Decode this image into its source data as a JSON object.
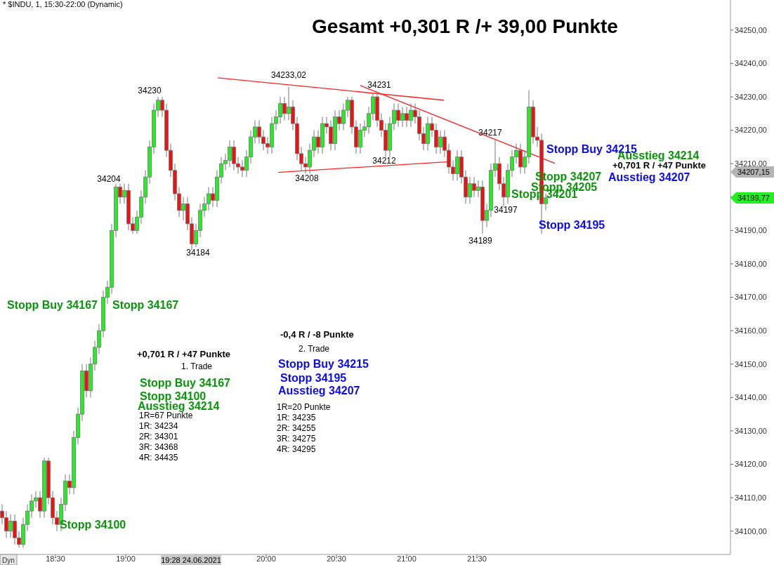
{
  "chart_data": {
    "type": "candlestick",
    "title": "Gesamt +0,301 R /+ 39,00 Punkte",
    "subtitle": "* $INDU, 1, 15:30-22:00 (Dynamic)",
    "xlim": [
      18.105,
      23.305
    ],
    "ylim": [
      34093,
      34259
    ],
    "xticks": [
      {
        "value": 18.5,
        "label": "18:30"
      },
      {
        "value": 19,
        "label": "19:00"
      },
      {
        "value": 19.5,
        "label": null
      },
      {
        "value": 20,
        "label": "20:00"
      },
      {
        "value": 20.5,
        "label": "20:30"
      },
      {
        "value": 21,
        "label": "21:00"
      },
      {
        "value": 21.5,
        "label": "21:30"
      }
    ],
    "yticks": [
      {
        "value": 34100,
        "label": "34100,00"
      },
      {
        "value": 34110,
        "label": "34110,00"
      },
      {
        "value": 34120,
        "label": "34120,00"
      },
      {
        "value": 34130,
        "label": "34130,00"
      },
      {
        "value": 34140,
        "label": "34140,00"
      },
      {
        "value": 34150,
        "label": "34150,00"
      },
      {
        "value": 34160,
        "label": "34160,00"
      },
      {
        "value": 34170,
        "label": "34170,00"
      },
      {
        "value": 34180,
        "label": "34180,00"
      },
      {
        "value": 34190,
        "label": "34190,00"
      },
      {
        "value": 34200,
        "label": null
      },
      {
        "value": 34210,
        "label": "34210,00"
      },
      {
        "value": 34220,
        "label": "34220,00"
      },
      {
        "value": 34230,
        "label": "34230,00"
      },
      {
        "value": 34240,
        "label": "34240,00"
      },
      {
        "value": 34250,
        "label": "34250,00"
      }
    ],
    "x": [
      18.12,
      18.15,
      18.18,
      18.21,
      18.24,
      18.27,
      18.3,
      18.33,
      18.36,
      18.39,
      18.42,
      18.45,
      18.48,
      18.51,
      18.54,
      18.57,
      18.6,
      18.63,
      18.66,
      18.69,
      18.72,
      18.75,
      18.78,
      18.81,
      18.84,
      18.87,
      18.9,
      18.93,
      18.96,
      18.99,
      19.02,
      19.05,
      19.08,
      19.11,
      19.14,
      19.17,
      19.2,
      19.23,
      19.26,
      19.29,
      19.32,
      19.35,
      19.38,
      19.41,
      19.44,
      19.47,
      19.5,
      19.53,
      19.56,
      19.59,
      19.62,
      19.65,
      19.68,
      19.71,
      19.74,
      19.77,
      19.8,
      19.83,
      19.86,
      19.89,
      19.92,
      19.95,
      19.98,
      20.01,
      20.04,
      20.07,
      20.1,
      20.13,
      20.16,
      20.19,
      20.22,
      20.25,
      20.28,
      20.31,
      20.34,
      20.37,
      20.4,
      20.43,
      20.46,
      20.49,
      20.52,
      20.55,
      20.58,
      20.61,
      20.64,
      20.67,
      20.7,
      20.73,
      20.76,
      20.79,
      20.82,
      20.85,
      20.88,
      20.91,
      20.94,
      20.97,
      21,
      21.03,
      21.06,
      21.09,
      21.12,
      21.15,
      21.18,
      21.21,
      21.24,
      21.27,
      21.3,
      21.33,
      21.36,
      21.39,
      21.42,
      21.45,
      21.48,
      21.51,
      21.54,
      21.57,
      21.6,
      21.63,
      21.66,
      21.69,
      21.72,
      21.75,
      21.78,
      21.81,
      21.84,
      21.87,
      21.9,
      21.93,
      21.96,
      21.99
    ],
    "ohlc": [
      [
        34106,
        34108,
        34102,
        34104
      ],
      [
        34104,
        34106,
        34098,
        34100
      ],
      [
        34100,
        34105,
        34098,
        34103
      ],
      [
        34103,
        34105,
        34096,
        34098
      ],
      [
        34098,
        34100,
        34095,
        34096
      ],
      [
        34096,
        34104,
        34095,
        34102
      ],
      [
        34102,
        34108,
        34100,
        34106
      ],
      [
        34106,
        34111,
        34104,
        34109
      ],
      [
        34109,
        34112,
        34107,
        34110
      ],
      [
        34110,
        34112,
        34104,
        34106
      ],
      [
        34106,
        34122,
        34104,
        34121
      ],
      [
        34121,
        34122,
        34108,
        34110
      ],
      [
        34110,
        34112,
        34102,
        34104
      ],
      [
        34104,
        34106,
        34100,
        34102
      ],
      [
        34102,
        34110,
        34100,
        34108
      ],
      [
        34108,
        34117,
        34106,
        34115
      ],
      [
        34115,
        34117,
        34111,
        34113
      ],
      [
        34113,
        34130,
        34111,
        34128
      ],
      [
        34128,
        34137,
        34126,
        34135
      ],
      [
        34135,
        34150,
        34133,
        34148
      ],
      [
        34148,
        34150,
        34140,
        34142
      ],
      [
        34142,
        34152,
        34140,
        34150
      ],
      [
        34150,
        34157,
        34148,
        34155
      ],
      [
        34155,
        34162,
        34153,
        34160
      ],
      [
        34160,
        34172,
        34158,
        34170
      ],
      [
        34170,
        34175,
        34168,
        34173
      ],
      [
        34173,
        34192,
        34171,
        34190
      ],
      [
        34190,
        34204,
        34188,
        34203
      ],
      [
        34203,
        34204,
        34198,
        34200
      ],
      [
        34200,
        34204,
        34198,
        34202
      ],
      [
        34202,
        34204,
        34190,
        34192
      ],
      [
        34192,
        34194,
        34189,
        34190
      ],
      [
        34190,
        34196,
        34189,
        34194
      ],
      [
        34194,
        34202,
        34192,
        34200
      ],
      [
        34200,
        34208,
        34198,
        34206
      ],
      [
        34206,
        34217,
        34204,
        34215
      ],
      [
        34215,
        34228,
        34213,
        34226
      ],
      [
        34226,
        34230,
        34224,
        34229
      ],
      [
        34229,
        34230,
        34224,
        34226
      ],
      [
        34226,
        34228,
        34212,
        34214
      ],
      [
        34214,
        34216,
        34206,
        34208
      ],
      [
        34208,
        34210,
        34199,
        34201
      ],
      [
        34201,
        34203,
        34194,
        34196
      ],
      [
        34196,
        34200,
        34193,
        34198
      ],
      [
        34198,
        34200,
        34190,
        34192
      ],
      [
        34192,
        34194,
        34184,
        34186
      ],
      [
        34186,
        34192,
        34185,
        34190
      ],
      [
        34190,
        34198,
        34188,
        34196
      ],
      [
        34196,
        34200,
        34194,
        34198
      ],
      [
        34198,
        34203,
        34196,
        34201
      ],
      [
        34201,
        34203,
        34197,
        34199
      ],
      [
        34199,
        34208,
        34197,
        34206
      ],
      [
        34206,
        34212,
        34204,
        34210
      ],
      [
        34210,
        34213,
        34208,
        34211
      ],
      [
        34211,
        34217,
        34209,
        34215
      ],
      [
        34215,
        34217,
        34208,
        34210
      ],
      [
        34210,
        34212,
        34207,
        34209
      ],
      [
        34209,
        34211,
        34206,
        34208
      ],
      [
        34208,
        34214,
        34206,
        34212
      ],
      [
        34212,
        34220,
        34210,
        34218
      ],
      [
        34218,
        34223,
        34216,
        34221
      ],
      [
        34221,
        34223,
        34216,
        34218
      ],
      [
        34218,
        34220,
        34214,
        34216
      ],
      [
        34216,
        34218,
        34213,
        34215
      ],
      [
        34215,
        34224,
        34213,
        34222
      ],
      [
        34222,
        34226,
        34220,
        34224
      ],
      [
        34224,
        34230,
        34222,
        34228
      ],
      [
        34228,
        34230,
        34223,
        34225
      ],
      [
        34225,
        34233.02,
        34223,
        34227
      ],
      [
        34227,
        34229,
        34220,
        34222
      ],
      [
        34222,
        34224,
        34211,
        34213
      ],
      [
        34213,
        34215,
        34208,
        34210
      ],
      [
        34210,
        34212,
        34207,
        34209
      ],
      [
        34209,
        34216,
        34207,
        34214
      ],
      [
        34214,
        34220,
        34212,
        34218
      ],
      [
        34218,
        34220,
        34213,
        34215
      ],
      [
        34215,
        34224,
        34213,
        34222
      ],
      [
        34222,
        34224,
        34219,
        34221
      ],
      [
        34221,
        34223,
        34214,
        34216
      ],
      [
        34216,
        34226,
        34214,
        34224
      ],
      [
        34224,
        34226,
        34220,
        34222
      ],
      [
        34222,
        34228,
        34220,
        34226
      ],
      [
        34226,
        34230,
        34224,
        34229
      ],
      [
        34229,
        34230,
        34219,
        34221
      ],
      [
        34221,
        34223,
        34213,
        34215
      ],
      [
        34215,
        34222,
        34213,
        34220
      ],
      [
        34220,
        34223,
        34218,
        34221
      ],
      [
        34221,
        34227,
        34219,
        34225
      ],
      [
        34225,
        34231,
        34223,
        34230
      ],
      [
        34230,
        34231,
        34221,
        34223
      ],
      [
        34223,
        34225,
        34218,
        34220
      ],
      [
        34220,
        34222,
        34212,
        34214
      ],
      [
        34214,
        34224,
        34212,
        34222
      ],
      [
        34222,
        34228,
        34220,
        34226
      ],
      [
        34226,
        34228,
        34221,
        34223
      ],
      [
        34223,
        34227,
        34221,
        34225
      ],
      [
        34225,
        34227,
        34221,
        34223
      ],
      [
        34223,
        34228,
        34221,
        34226
      ],
      [
        34226,
        34228,
        34222,
        34224
      ],
      [
        34224,
        34226,
        34217,
        34219
      ],
      [
        34219,
        34221,
        34214,
        34216
      ],
      [
        34216,
        34224,
        34214,
        34222
      ],
      [
        34222,
        34224,
        34218,
        34220
      ],
      [
        34220,
        34222,
        34213,
        34215
      ],
      [
        34215,
        34220,
        34213,
        34218
      ],
      [
        34218,
        34220,
        34212,
        34214
      ],
      [
        34214,
        34216,
        34207,
        34209
      ],
      [
        34209,
        34211,
        34205,
        34207
      ],
      [
        34207,
        34214,
        34205,
        34212
      ],
      [
        34212,
        34214,
        34204,
        34206
      ],
      [
        34206,
        34208,
        34198,
        34200
      ],
      [
        34200,
        34206,
        34198,
        34204
      ],
      [
        34204,
        34206,
        34200,
        34202
      ],
      [
        34202,
        34205,
        34200,
        34203
      ],
      [
        34203,
        34205,
        34189,
        34193
      ],
      [
        34193,
        34198,
        34191,
        34196
      ],
      [
        34196,
        34210,
        34194,
        34208
      ],
      [
        34208,
        34217,
        34206,
        34210
      ],
      [
        34210,
        34212,
        34202,
        34204
      ],
      [
        34204,
        34206,
        34197,
        34200
      ],
      [
        34200,
        34210,
        34198,
        34208
      ],
      [
        34208,
        34214,
        34206,
        34212
      ],
      [
        34212,
        34216,
        34210,
        34214
      ],
      [
        34214,
        34216,
        34207,
        34209
      ],
      [
        34209,
        34214,
        34207,
        34212
      ],
      [
        34212,
        34232,
        34210,
        34227
      ],
      [
        34227,
        34229,
        34216,
        34218
      ],
      [
        34218,
        34221,
        34215,
        34217
      ],
      [
        34217,
        34219,
        34189,
        34198
      ],
      [
        34198,
        34201,
        34196,
        34199.77
      ]
    ],
    "series": [
      {
        "type": "line",
        "color": "#ff2020",
        "x": [
          19.655,
          21.265
        ],
        "values": [
          34235.7,
          34229.0
        ]
      },
      {
        "type": "line",
        "color": "#ff2020",
        "x": [
          20.67,
          22.055
        ],
        "values": [
          34233.4,
          34210.1
        ]
      },
      {
        "type": "line",
        "color": "#ff2020",
        "x": [
          20.085,
          21.305
        ],
        "values": [
          34207.4,
          34210.6
        ]
      }
    ],
    "annotations": [
      "34230",
      "34204",
      "34184",
      "34233,02",
      "34231",
      "34212",
      "34208",
      "34217",
      "34197",
      "34189",
      "Stopp Buy 34167",
      "Stopp 34167",
      "Stopp 34100",
      "+0,701 R / +47 Punkte",
      "1. Trade",
      "Stopp Buy 34167",
      "Stopp 34100",
      "Ausstieg 34214",
      "1R=67 Punkte",
      "1R: 34234",
      "2R: 34301",
      "3R: 34368",
      "4R: 34435",
      "-0,4 R / -8 Punkte",
      "2. Trade",
      "Stopp Buy 34215",
      "Stopp 34195",
      "Ausstieg 34207",
      "1R=20 Punkte",
      "1R: 34235",
      "2R: 34255",
      "3R: 34275",
      "4R: 34295",
      "Stopp Buy 34215",
      "Ausstieg 34214",
      "+0,701 R / +47 Punkte",
      "Stopp 34207",
      "Ausstieg 34207",
      "Stopp 34205",
      "Stopp 34201",
      "Stopp 34195",
      "19:28 24.06.2021",
      "Dyn",
      "34207,15",
      "34199,77"
    ]
  }
}
